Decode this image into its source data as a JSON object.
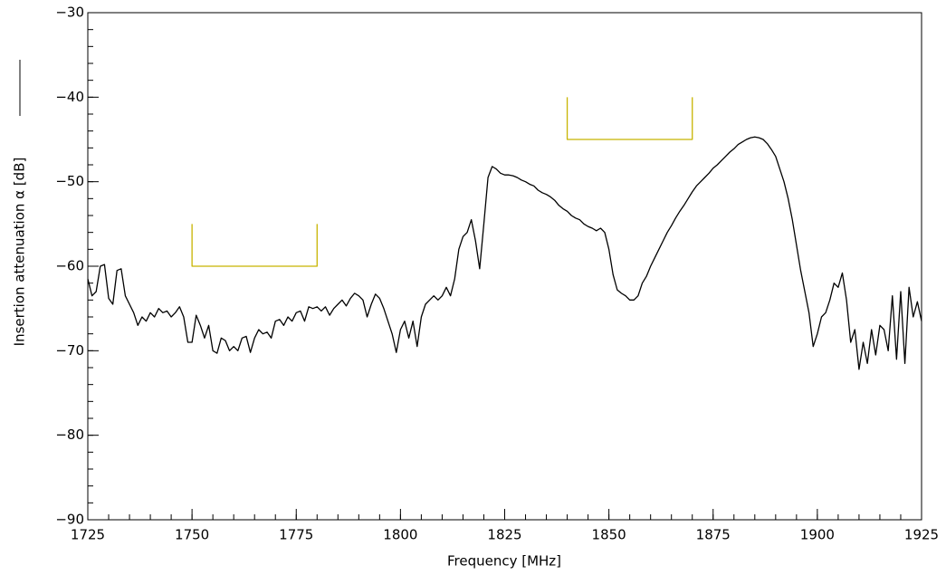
{
  "chart_data": {
    "type": "line",
    "y_label": "Insertion  attenuation  α  [dB]",
    "x_label": "Frequency  [MHz]",
    "xlim": [
      1725,
      1925
    ],
    "ylim": [
      -90,
      -30
    ],
    "xticks": [
      1725,
      1750,
      1775,
      1800,
      1825,
      1850,
      1875,
      1900,
      1925
    ],
    "yticks": [
      {
        "value": -90,
        "label": "−90"
      },
      {
        "value": -80,
        "label": "−80"
      },
      {
        "value": -70,
        "label": "−70"
      },
      {
        "value": -60,
        "label": "−60"
      },
      {
        "value": -50,
        "label": "−50"
      },
      {
        "value": -40,
        "label": "−40"
      },
      {
        "value": -30,
        "label": "−30"
      }
    ],
    "xminor": 5,
    "yminor": 2,
    "grid": false,
    "series": [
      {
        "color": "#000000",
        "x": [
          1725,
          1726,
          1727,
          1728,
          1729,
          1730,
          1731,
          1732,
          1733,
          1734,
          1735,
          1736,
          1737,
          1738,
          1739,
          1740,
          1741,
          1742,
          1743,
          1744,
          1745,
          1746,
          1747,
          1748,
          1749,
          1750,
          1751,
          1752,
          1753,
          1754,
          1755,
          1756,
          1757,
          1758,
          1759,
          1760,
          1761,
          1762,
          1763,
          1764,
          1765,
          1766,
          1767,
          1768,
          1769,
          1770,
          1771,
          1772,
          1773,
          1774,
          1775,
          1776,
          1777,
          1778,
          1779,
          1780,
          1781,
          1782,
          1783,
          1784,
          1785,
          1786,
          1787,
          1788,
          1789,
          1790,
          1791,
          1792,
          1793,
          1794,
          1795,
          1796,
          1797,
          1798,
          1799,
          1800,
          1801,
          1802,
          1803,
          1804,
          1805,
          1806,
          1807,
          1808,
          1809,
          1810,
          1811,
          1812,
          1813,
          1814,
          1815,
          1816,
          1817,
          1818,
          1819,
          1820,
          1821,
          1822,
          1823,
          1824,
          1825,
          1826,
          1827,
          1828,
          1829,
          1830,
          1831,
          1832,
          1833,
          1834,
          1835,
          1836,
          1837,
          1838,
          1839,
          1840,
          1841,
          1842,
          1843,
          1844,
          1845,
          1846,
          1847,
          1848,
          1849,
          1850,
          1851,
          1852,
          1853,
          1854,
          1855,
          1856,
          1857,
          1858,
          1859,
          1860,
          1861,
          1862,
          1863,
          1864,
          1865,
          1866,
          1867,
          1868,
          1869,
          1870,
          1871,
          1872,
          1873,
          1874,
          1875,
          1876,
          1877,
          1878,
          1879,
          1880,
          1881,
          1882,
          1883,
          1884,
          1885,
          1886,
          1887,
          1888,
          1889,
          1890,
          1891,
          1892,
          1893,
          1894,
          1895,
          1896,
          1897,
          1898,
          1899,
          1900,
          1901,
          1902,
          1903,
          1904,
          1905,
          1906,
          1907,
          1908,
          1909,
          1910,
          1911,
          1912,
          1913,
          1914,
          1915,
          1916,
          1917,
          1918,
          1919,
          1920,
          1921,
          1922,
          1923,
          1924,
          1925
        ],
        "values": [
          -61.5,
          -63.5,
          -63,
          -60,
          -59.8,
          -63.8,
          -64.5,
          -60.5,
          -60.3,
          -63.5,
          -64.5,
          -65.5,
          -67,
          -66,
          -66.5,
          -65.5,
          -66,
          -65,
          -65.5,
          -65.3,
          -66,
          -65.5,
          -64.8,
          -66,
          -69,
          -69,
          -65.8,
          -67,
          -68.5,
          -67,
          -70,
          -70.3,
          -68.5,
          -68.8,
          -70,
          -69.5,
          -70,
          -68.5,
          -68.3,
          -70.2,
          -68.5,
          -67.5,
          -68,
          -67.8,
          -68.5,
          -66.5,
          -66.3,
          -67,
          -66,
          -66.5,
          -65.5,
          -65.3,
          -66.5,
          -64.8,
          -65,
          -64.8,
          -65.3,
          -64.8,
          -65.8,
          -65,
          -64.5,
          -64,
          -64.7,
          -63.8,
          -63.2,
          -63.5,
          -64,
          -66,
          -64.5,
          -63.3,
          -63.8,
          -65,
          -66.5,
          -68,
          -70.2,
          -67.5,
          -66.5,
          -68.5,
          -66.5,
          -69.5,
          -66,
          -64.5,
          -64,
          -63.5,
          -64,
          -63.5,
          -62.5,
          -63.5,
          -61.5,
          -58,
          -56.5,
          -56,
          -54.5,
          -57,
          -60.3,
          -55,
          -49.5,
          -48.2,
          -48.5,
          -49,
          -49.2,
          -49.2,
          -49.3,
          -49.5,
          -49.8,
          -50,
          -50.3,
          -50.5,
          -51,
          -51.3,
          -51.5,
          -51.8,
          -52.2,
          -52.8,
          -53.2,
          -53.5,
          -54,
          -54.3,
          -54.5,
          -55,
          -55.3,
          -55.5,
          -55.8,
          -55.5,
          -56,
          -58,
          -61,
          -62.8,
          -63.2,
          -63.5,
          -64,
          -64,
          -63.5,
          -62,
          -61.2,
          -60,
          -59,
          -58,
          -57,
          -56,
          -55.2,
          -54.3,
          -53.5,
          -52.8,
          -52,
          -51.2,
          -50.5,
          -50,
          -49.5,
          -49,
          -48.4,
          -48,
          -47.5,
          -47,
          -46.5,
          -46.1,
          -45.6,
          -45.3,
          -45,
          -44.8,
          -44.7,
          -44.8,
          -45,
          -45.5,
          -46.2,
          -47,
          -48.5,
          -50,
          -52,
          -54.5,
          -57.5,
          -60.5,
          -63,
          -65.5,
          -69.5,
          -68,
          -66,
          -65.5,
          -64,
          -62,
          -62.5,
          -60.8,
          -64,
          -69,
          -67.5,
          -72.2,
          -69,
          -71.5,
          -67.5,
          -70.5,
          -67,
          -67.5,
          -70,
          -63.5,
          -71,
          -63,
          -71.5,
          -62.5,
          -66,
          -64.2,
          -66.5
        ]
      }
    ],
    "masks": [
      {
        "color": "#c8b400",
        "x": [
          1750,
          1750,
          1780,
          1780
        ],
        "values": [
          -55,
          -60,
          -60,
          -55
        ]
      },
      {
        "color": "#c8b400",
        "x": [
          1840,
          1840,
          1870,
          1870
        ],
        "values": [
          -40,
          -45,
          -45,
          -40
        ]
      }
    ]
  }
}
